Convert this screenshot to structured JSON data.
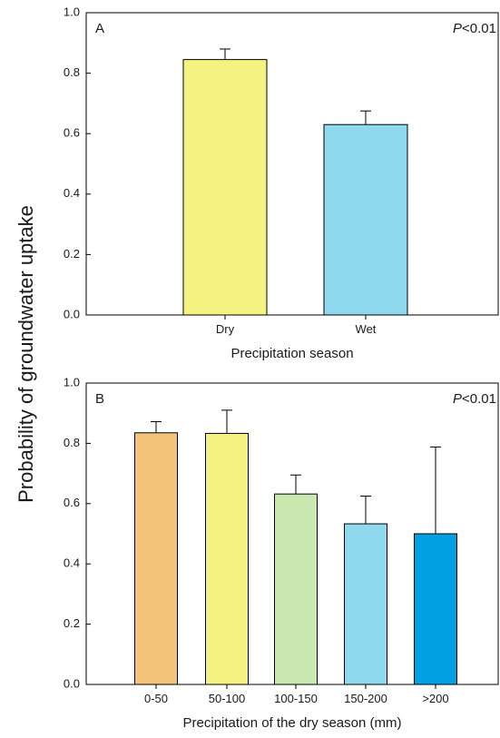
{
  "ylabel": "Probability of groundwater uptake",
  "chart_data": [
    {
      "type": "bar",
      "panel": "A",
      "annotation_italic": "P",
      "annotation_rest": "<0.01",
      "categories": [
        "Dry",
        "Wet"
      ],
      "values": [
        0.845,
        0.63
      ],
      "errors": [
        0.035,
        0.045
      ],
      "colors": [
        "#f4f382",
        "#8fd9ee"
      ],
      "xlabel": "Precipitation season",
      "ylabel": "Probability of groundwater uptake",
      "ylim": [
        0.0,
        1.0
      ],
      "yticks": [
        "0.0",
        "0.2",
        "0.4",
        "0.6",
        "0.8",
        "1.0"
      ],
      "grid": false
    },
    {
      "type": "bar",
      "panel": "B",
      "annotation_italic": "P",
      "annotation_rest": "<0.01",
      "categories": [
        "0-50",
        "50-100",
        "100-150",
        "150-200",
        ">200"
      ],
      "values": [
        0.835,
        0.833,
        0.632,
        0.533,
        0.5
      ],
      "errors": [
        0.037,
        0.077,
        0.063,
        0.092,
        0.288
      ],
      "colors": [
        "#f3c379",
        "#f4f382",
        "#c8e8b0",
        "#8fd9ee",
        "#00a0e3"
      ],
      "xlabel": "Precipitation of the dry season (mm)",
      "ylabel": "Probability of groundwater uptake",
      "ylim": [
        0.0,
        1.0
      ],
      "yticks": [
        "0.0",
        "0.2",
        "0.4",
        "0.6",
        "0.8",
        "1.0"
      ],
      "grid": false
    }
  ]
}
